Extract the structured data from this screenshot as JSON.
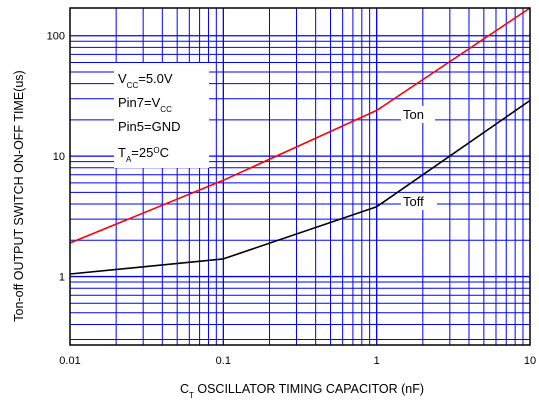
{
  "chart_data": {
    "type": "line",
    "xlabel": {
      "main": "C",
      "sub": "T",
      "rest": " OSCILLATOR TIMING CAPACITOR (nF)"
    },
    "ylabel": "Ton-off  OUTPUT SWITCH  ON-OFF TIME(us)",
    "x_scale": "log",
    "y_scale": "log",
    "xlim": [
      0.01,
      10
    ],
    "ylim": [
      0.27,
      170
    ],
    "x_ticks": [
      {
        "value": 0.01,
        "label": "0.01"
      },
      {
        "value": 0.1,
        "label": "0.1"
      },
      {
        "value": 1,
        "label": "1"
      },
      {
        "value": 10,
        "label": "10"
      }
    ],
    "y_ticks": [
      {
        "value": 1,
        "label": "1"
      },
      {
        "value": 10,
        "label": "10"
      },
      {
        "value": 100,
        "label": "100"
      }
    ],
    "grid": true,
    "series": [
      {
        "name": "Ton",
        "color": "#ff0000",
        "x": [
          0.01,
          0.1,
          1,
          10
        ],
        "y": [
          1.9,
          6.3,
          24,
          170
        ]
      },
      {
        "name": "Toff",
        "color": "#000000",
        "x": [
          0.01,
          0.1,
          1,
          10
        ],
        "y": [
          1.05,
          1.4,
          3.8,
          29
        ]
      }
    ],
    "conditions": [
      {
        "main": "V",
        "sub": "CC",
        "rest": "=5.0V"
      },
      {
        "main": "Pin7=V",
        "sub": "CC",
        "rest": ""
      },
      {
        "main": "Pin5=GND",
        "sub": "",
        "rest": ""
      },
      {
        "main": "T",
        "sub": "A",
        "rest": "=25",
        "sup": "O",
        "tail": "C"
      }
    ]
  }
}
